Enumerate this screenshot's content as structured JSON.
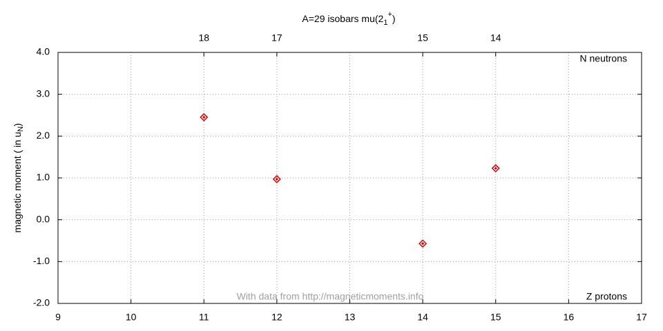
{
  "chart_data": {
    "type": "scatter",
    "title": {
      "text": "A=29 isobars mu(2",
      "sub": "1",
      "sup": "+",
      "end": ")"
    },
    "ylabel": {
      "text": "magnetic moment ( in u",
      "sub": "N",
      "end": ")"
    },
    "annotations": {
      "top_right": "N neutrons",
      "bottom_right": "Z protons",
      "credit": "With data from http://magneticmoments.info"
    },
    "x": [
      11,
      12,
      14,
      15
    ],
    "values": [
      2.45,
      0.97,
      -0.57,
      1.23
    ],
    "color": "#e00000",
    "xlim": [
      9,
      17
    ],
    "xticks": [
      9,
      10,
      11,
      12,
      13,
      14,
      15,
      16,
      17
    ],
    "x2ticks": [
      {
        "value": 11,
        "label": "18"
      },
      {
        "value": 12,
        "label": "17"
      },
      {
        "value": 14,
        "label": "15"
      },
      {
        "value": 15,
        "label": "14"
      }
    ],
    "ylim": [
      -2,
      4
    ],
    "yticks": [
      {
        "value": -2,
        "label": "-2.0"
      },
      {
        "value": -1,
        "label": "-1.0"
      },
      {
        "value": 0,
        "label": "0.0"
      },
      {
        "value": 1,
        "label": "1.0"
      },
      {
        "value": 2,
        "label": "2.0"
      },
      {
        "value": 3,
        "label": "3.0"
      },
      {
        "value": 4,
        "label": "4.0"
      }
    ],
    "grid": true
  }
}
